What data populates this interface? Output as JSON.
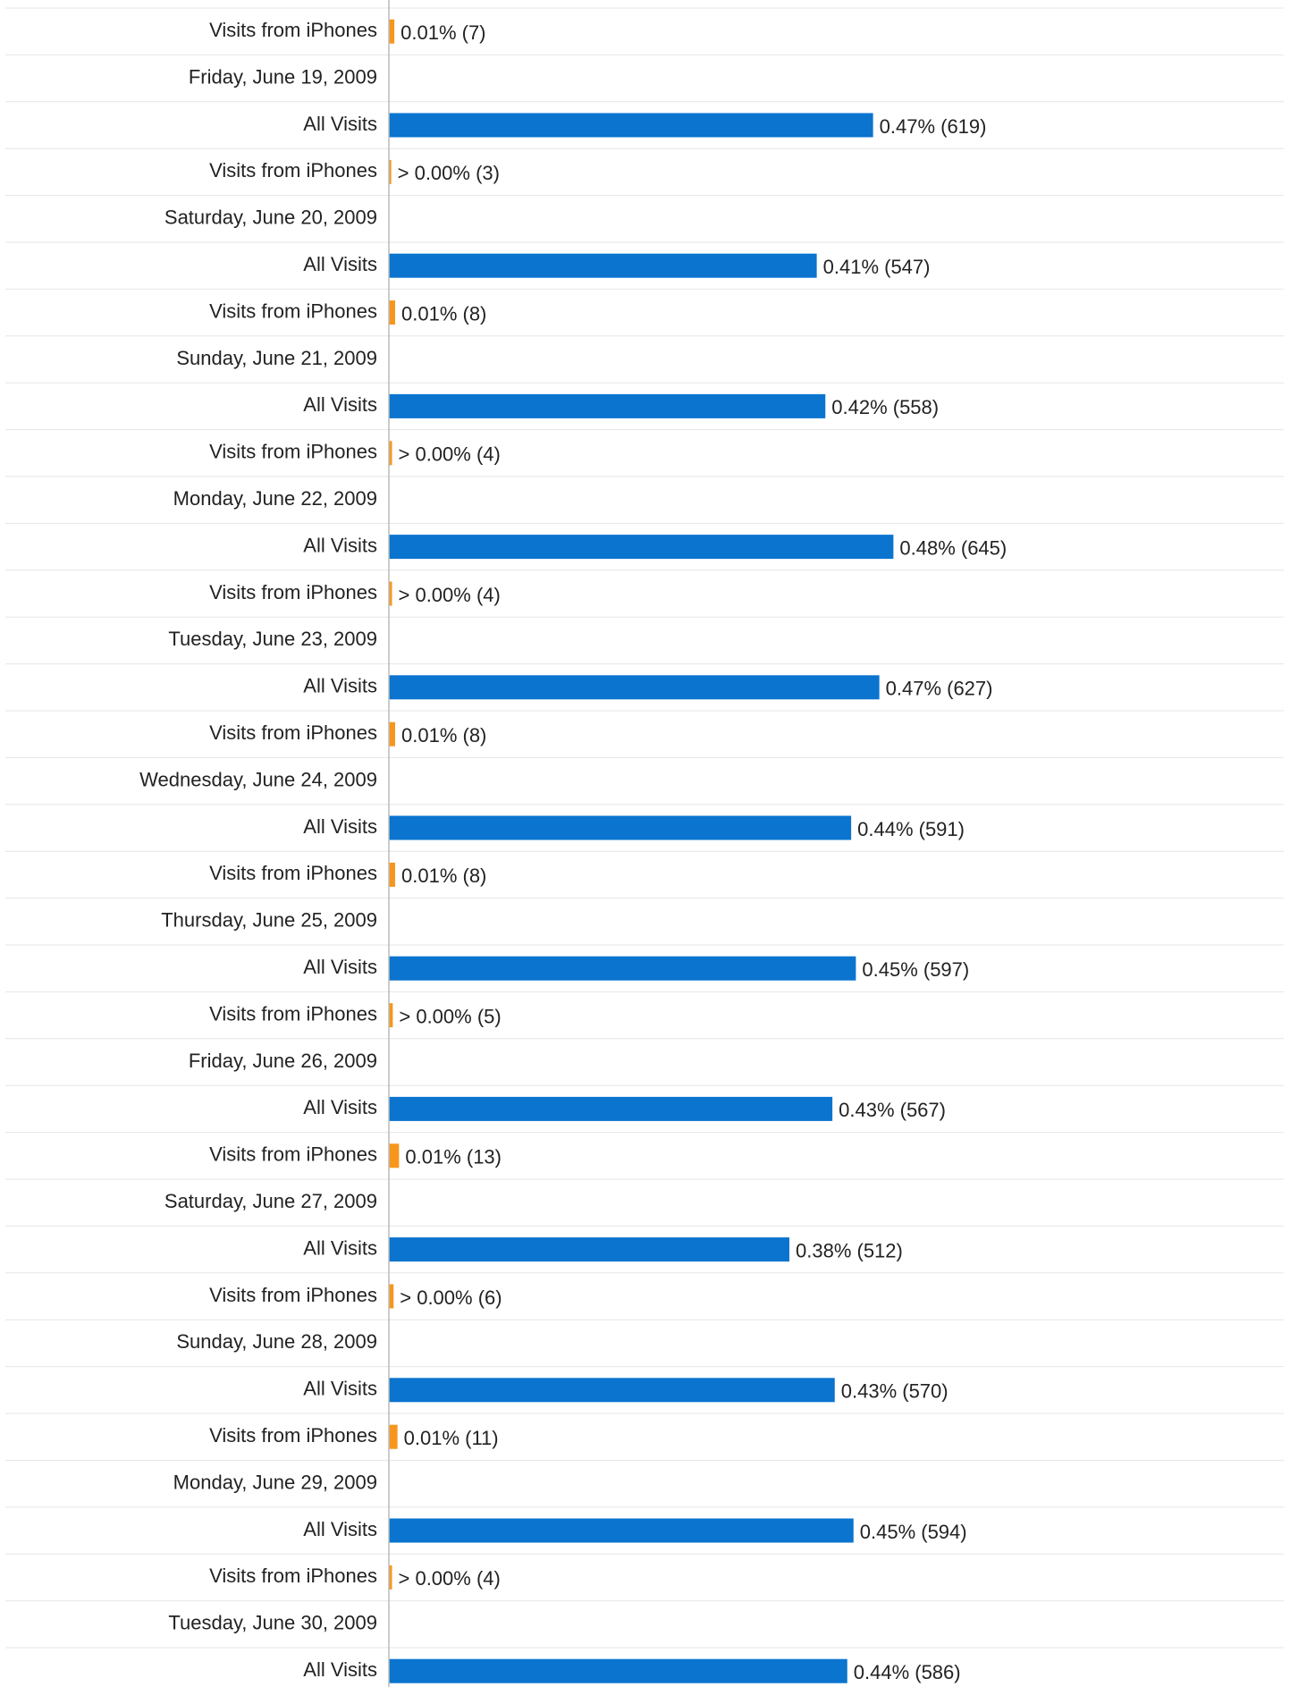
{
  "chart_data": {
    "type": "bar",
    "orientation": "horizontal",
    "rows": [
      {
        "label": "Visits from iPhones",
        "value": 7,
        "value_label": "0.01% (7)",
        "color": "#f7961c"
      },
      {
        "label": "Friday, June 19, 2009"
      },
      {
        "label": "All Visits",
        "value": 619,
        "value_label": "0.47% (619)",
        "color": "#0a74cf"
      },
      {
        "label": "Visits from iPhones",
        "value": 3,
        "value_label": "> 0.00% (3)",
        "color": "#f7961c"
      },
      {
        "label": "Saturday, June 20, 2009"
      },
      {
        "label": "All Visits",
        "value": 547,
        "value_label": "0.41% (547)",
        "color": "#0a74cf"
      },
      {
        "label": "Visits from iPhones",
        "value": 8,
        "value_label": "0.01% (8)",
        "color": "#f7961c"
      },
      {
        "label": "Sunday, June 21, 2009"
      },
      {
        "label": "All Visits",
        "value": 558,
        "value_label": "0.42% (558)",
        "color": "#0a74cf"
      },
      {
        "label": "Visits from iPhones",
        "value": 4,
        "value_label": "> 0.00% (4)",
        "color": "#f7961c"
      },
      {
        "label": "Monday, June 22, 2009"
      },
      {
        "label": "All Visits",
        "value": 645,
        "value_label": "0.48% (645)",
        "color": "#0a74cf"
      },
      {
        "label": "Visits from iPhones",
        "value": 4,
        "value_label": "> 0.00% (4)",
        "color": "#f7961c"
      },
      {
        "label": "Tuesday, June 23, 2009"
      },
      {
        "label": "All Visits",
        "value": 627,
        "value_label": "0.47% (627)",
        "color": "#0a74cf"
      },
      {
        "label": "Visits from iPhones",
        "value": 8,
        "value_label": "0.01% (8)",
        "color": "#f7961c"
      },
      {
        "label": "Wednesday, June 24, 2009"
      },
      {
        "label": "All Visits",
        "value": 591,
        "value_label": "0.44% (591)",
        "color": "#0a74cf"
      },
      {
        "label": "Visits from iPhones",
        "value": 8,
        "value_label": "0.01% (8)",
        "color": "#f7961c"
      },
      {
        "label": "Thursday, June 25, 2009"
      },
      {
        "label": "All Visits",
        "value": 597,
        "value_label": "0.45% (597)",
        "color": "#0a74cf"
      },
      {
        "label": "Visits from iPhones",
        "value": 5,
        "value_label": "> 0.00% (5)",
        "color": "#f7961c"
      },
      {
        "label": "Friday, June 26, 2009"
      },
      {
        "label": "All Visits",
        "value": 567,
        "value_label": "0.43% (567)",
        "color": "#0a74cf"
      },
      {
        "label": "Visits from iPhones",
        "value": 13,
        "value_label": "0.01% (13)",
        "color": "#f7961c"
      },
      {
        "label": "Saturday, June 27, 2009"
      },
      {
        "label": "All Visits",
        "value": 512,
        "value_label": "0.38% (512)",
        "color": "#0a74cf"
      },
      {
        "label": "Visits from iPhones",
        "value": 6,
        "value_label": "> 0.00% (6)",
        "color": "#f7961c"
      },
      {
        "label": "Sunday, June 28, 2009"
      },
      {
        "label": "All Visits",
        "value": 570,
        "value_label": "0.43% (570)",
        "color": "#0a74cf"
      },
      {
        "label": "Visits from iPhones",
        "value": 11,
        "value_label": "0.01% (11)",
        "color": "#f7961c"
      },
      {
        "label": "Monday, June 29, 2009"
      },
      {
        "label": "All Visits",
        "value": 594,
        "value_label": "0.45% (594)",
        "color": "#0a74cf"
      },
      {
        "label": "Visits from iPhones",
        "value": 4,
        "value_label": "> 0.00% (4)",
        "color": "#f7961c"
      },
      {
        "label": "Tuesday, June 30, 2009"
      },
      {
        "label": "All Visits",
        "value": 586,
        "value_label": "0.44% (586)",
        "color": "#0a74cf"
      }
    ]
  }
}
